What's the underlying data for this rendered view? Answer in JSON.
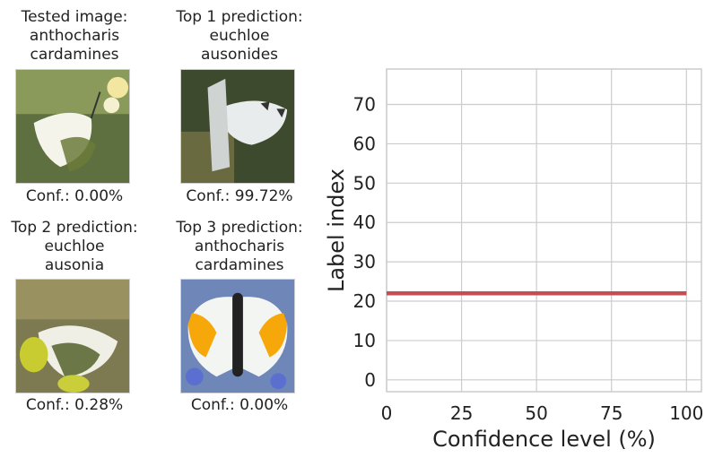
{
  "panels": [
    {
      "title_lines": [
        "Tested image:",
        "anthocharis",
        "cardamines"
      ],
      "conf": "Conf.: 0.00%",
      "icon": "orange-tip-butterfly-underside"
    },
    {
      "title_lines": [
        "Top 1 prediction:",
        "euchloe",
        "ausonides"
      ],
      "conf": "Conf.: 99.72%",
      "icon": "marble-butterfly"
    },
    {
      "title_lines": [
        "Top 2 prediction:",
        "euchloe",
        "ausonia"
      ],
      "conf": "Conf.: 0.28%",
      "icon": "marble-butterfly-underside"
    },
    {
      "title_lines": [
        "Top 3 prediction:",
        "anthocharis",
        "cardamines"
      ],
      "conf": "Conf.: 0.00%",
      "icon": "orange-tip-butterfly"
    }
  ],
  "chart_data": {
    "type": "line",
    "title": "",
    "xlabel": "Confidence level (%)",
    "ylabel": "Label index",
    "xlim": [
      0,
      105
    ],
    "ylim": [
      -3,
      79
    ],
    "xticks": [
      0,
      25,
      50,
      75,
      100
    ],
    "yticks": [
      0,
      10,
      20,
      30,
      40,
      50,
      60,
      70
    ],
    "grid": true,
    "series": [
      {
        "x": [
          0,
          100
        ],
        "y": [
          22,
          22
        ],
        "color": "#c44e52"
      }
    ]
  }
}
